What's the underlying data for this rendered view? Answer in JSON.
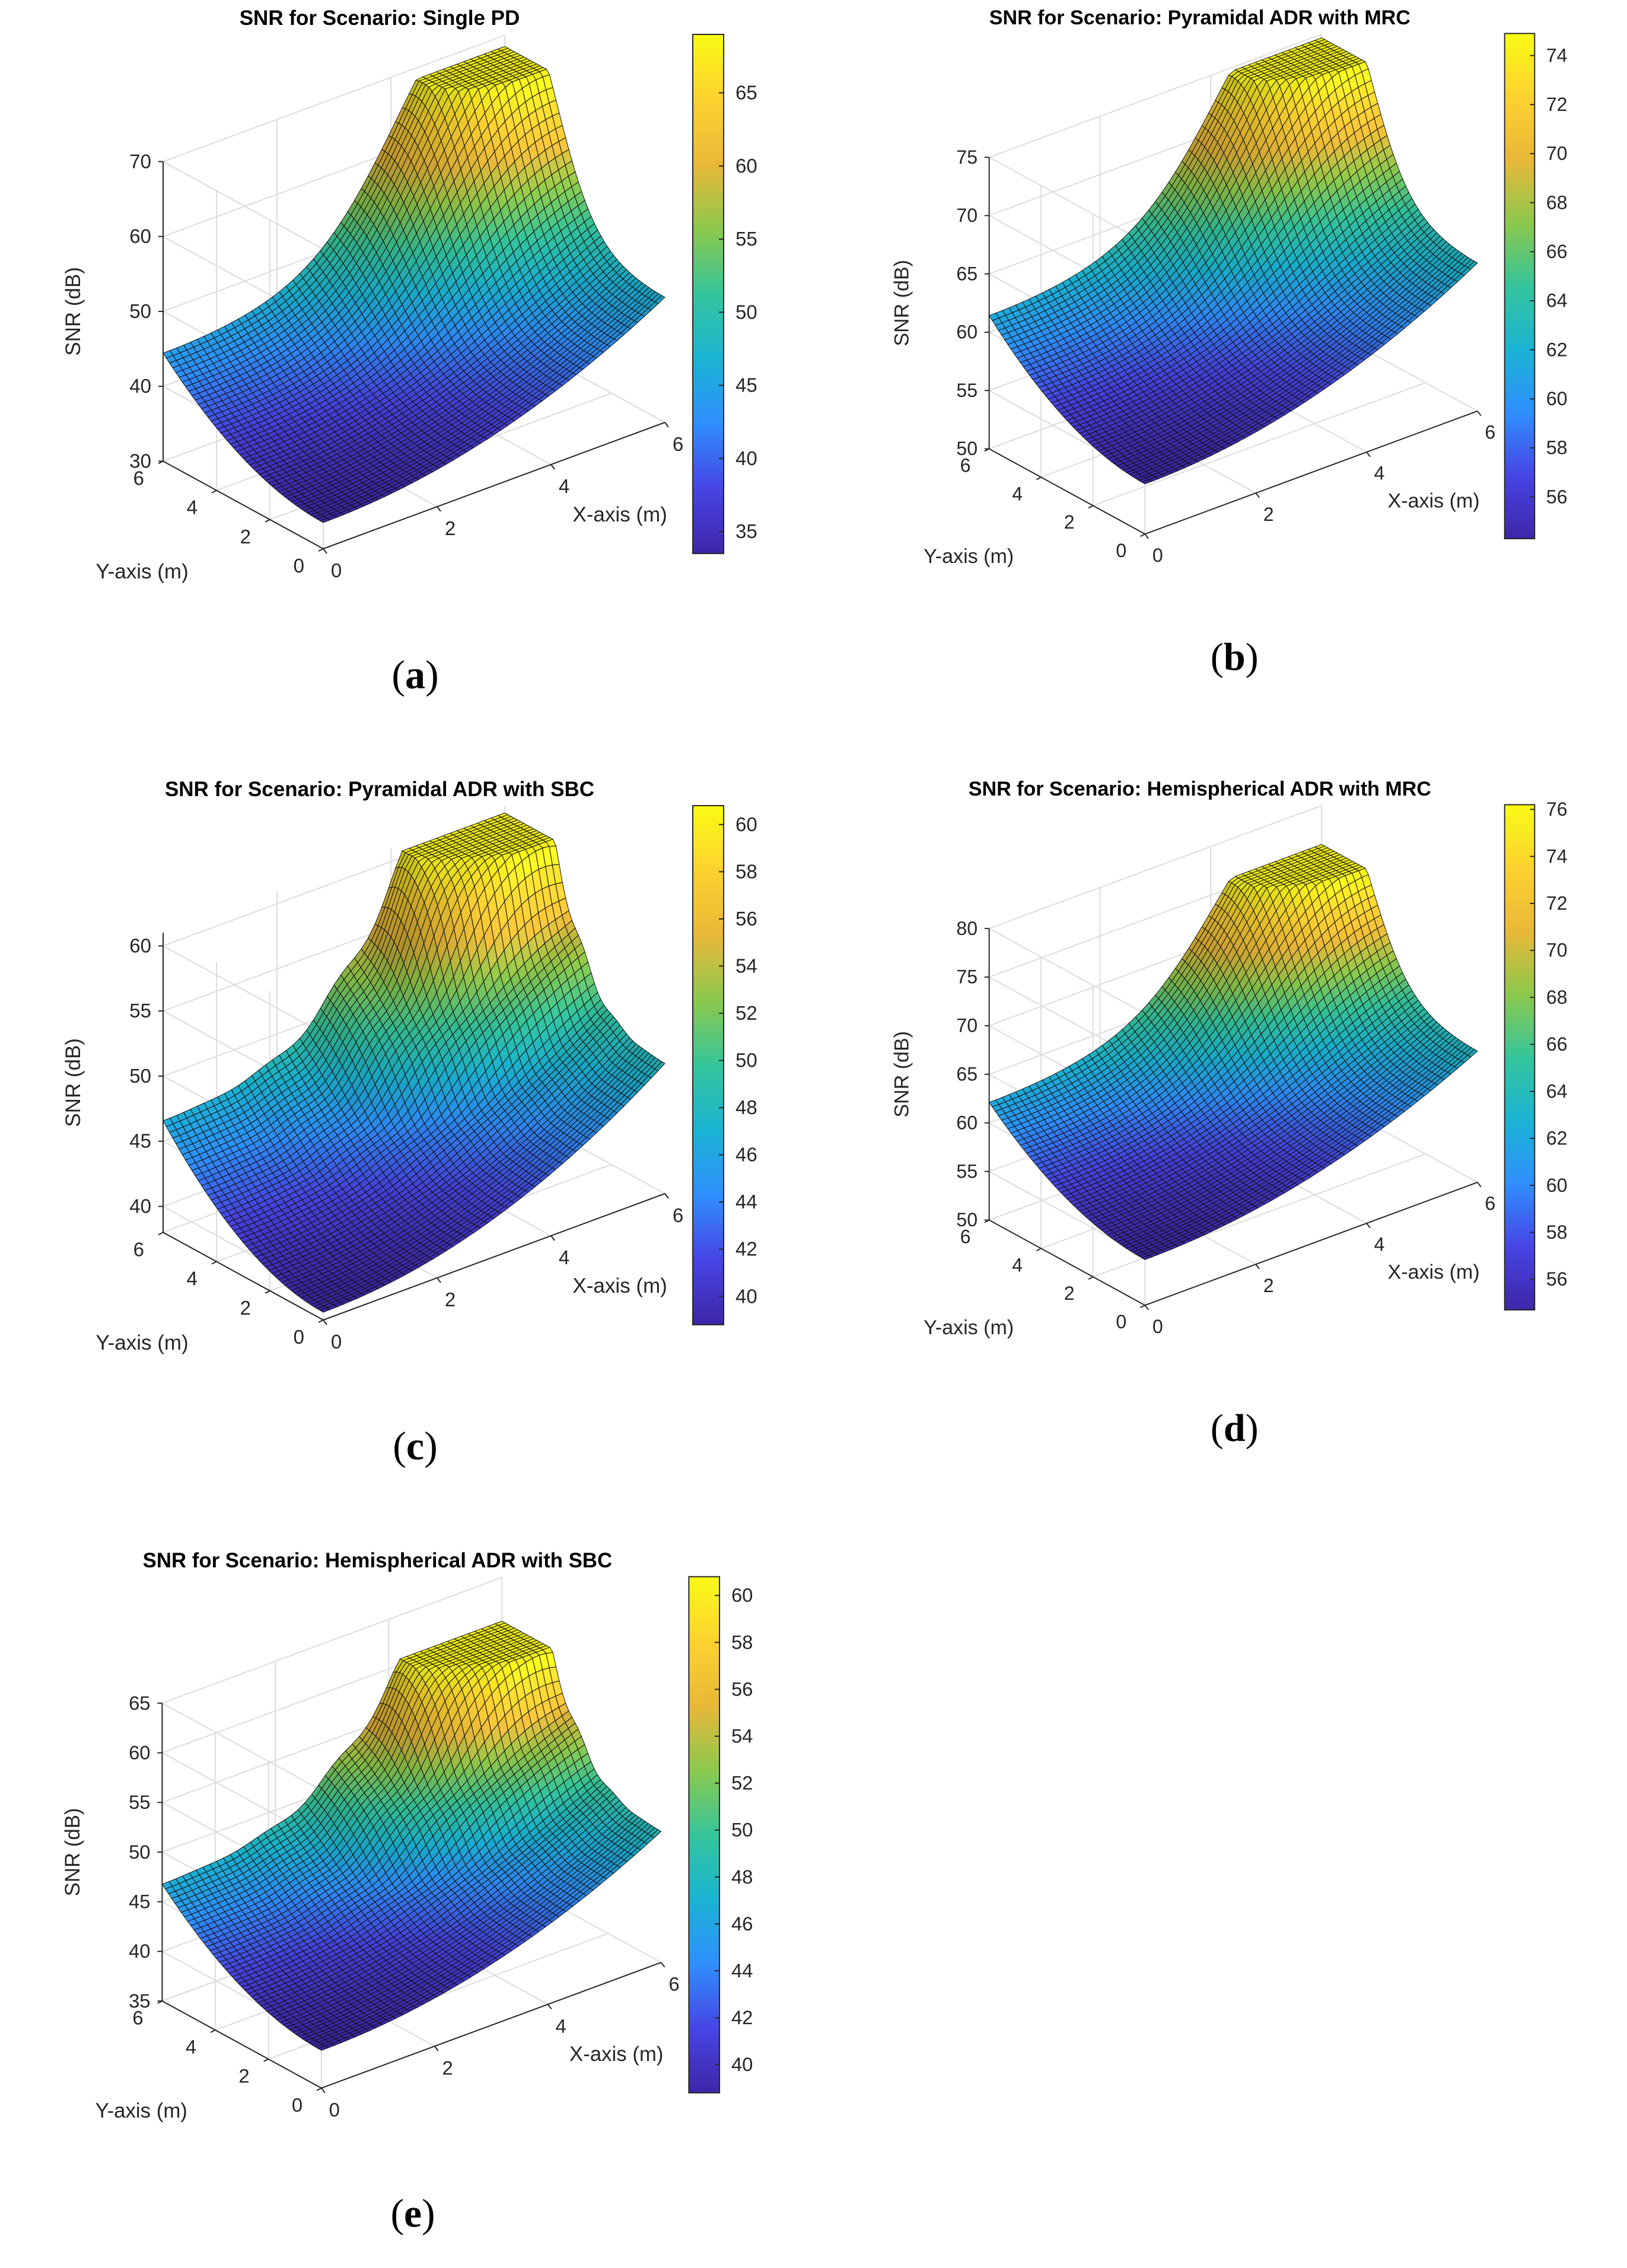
{
  "figure": {
    "colors": {
      "colormap": [
        "#3e26a8",
        "#4745e4",
        "#2f8ffd",
        "#1ab4d3",
        "#35c59b",
        "#8cc84c",
        "#e9b838",
        "#fcd22f",
        "#f9fb15"
      ]
    },
    "panels": [
      {
        "id": "a",
        "caption": "a",
        "chart_data": {
          "type": "surface",
          "title": "SNR for Scenario: Single PD",
          "xlabel": "X-axis (m)",
          "ylabel": "Y-axis (m)",
          "zlabel": "SNR (dB)",
          "xlim": [
            0,
            6
          ],
          "ylim": [
            0,
            6
          ],
          "zlim": [
            30,
            70
          ],
          "xticks": [
            "0",
            "2",
            "4",
            "6"
          ],
          "yticks": [
            "0",
            "2",
            "4",
            "6"
          ],
          "zticks": [
            "30",
            "40",
            "50",
            "60",
            "70"
          ],
          "surface": {
            "grid": 50,
            "z_corner_low": 33.5,
            "z_corner_x_high": 46.7,
            "z_corner_y_high": 45.0,
            "z_peak": 68.5,
            "peak_x": 5.4,
            "peak_y": 5.4,
            "ripples": 0
          },
          "colorbar": {
            "min": 33.5,
            "max": 69,
            "ticks": [
              "35",
              "40",
              "45",
              "50",
              "55",
              "60",
              "65"
            ]
          }
        }
      },
      {
        "id": "b",
        "caption": "b",
        "chart_data": {
          "type": "surface",
          "title": "SNR for Scenario: Pyramidal ADR with MRC",
          "xlabel": "X-axis (m)",
          "ylabel": "Y-axis (m)",
          "zlabel": "SNR (dB)",
          "xlim": [
            0,
            6
          ],
          "ylim": [
            0,
            6
          ],
          "zlim": [
            50,
            75
          ],
          "xticks": [
            "0",
            "2",
            "4",
            "6"
          ],
          "yticks": [
            "0",
            "2",
            "4",
            "6"
          ],
          "zticks": [
            "50",
            "55",
            "60",
            "65",
            "70",
            "75"
          ],
          "surface": {
            "grid": 50,
            "z_corner_low": 54.3,
            "z_corner_x_high": 62.7,
            "z_corner_y_high": 61.8,
            "z_peak": 74.7,
            "peak_x": 5.4,
            "peak_y": 5.4,
            "ripples": 0
          },
          "colorbar": {
            "min": 54.3,
            "max": 74.9,
            "ticks": [
              "56",
              "58",
              "60",
              "62",
              "64",
              "66",
              "68",
              "70",
              "72",
              "74"
            ]
          }
        }
      },
      {
        "id": "c",
        "caption": "c",
        "chart_data": {
          "type": "surface",
          "title": "SNR for Scenario: Pyramidal ADR with SBC",
          "xlabel": "X-axis (m)",
          "ylabel": "Y-axis (m)",
          "zlabel": "SNR (dB)",
          "xlim": [
            0,
            6
          ],
          "ylim": [
            0,
            6
          ],
          "zlim": [
            38,
            61
          ],
          "xticks": [
            "0",
            "2",
            "4",
            "6"
          ],
          "yticks": [
            "0",
            "2",
            "4",
            "6"
          ],
          "zticks": [
            "40",
            "45",
            "50",
            "55",
            "60"
          ],
          "surface": {
            "grid": 50,
            "z_corner_low": 38.6,
            "z_corner_x_high": 48.0,
            "z_corner_y_high": 47.0,
            "z_peak": 60.5,
            "peak_x": 5.3,
            "peak_y": 5.3,
            "ripples": 1
          },
          "colorbar": {
            "min": 38.8,
            "max": 60.8,
            "ticks": [
              "40",
              "42",
              "44",
              "46",
              "48",
              "50",
              "52",
              "54",
              "56",
              "58",
              "60"
            ]
          }
        }
      },
      {
        "id": "d",
        "caption": "d",
        "chart_data": {
          "type": "surface",
          "title": "SNR for Scenario: Hemispherical ADR with MRC",
          "xlabel": "X-axis (m)",
          "ylabel": "Y-axis (m)",
          "zlabel": "SNR (dB)",
          "xlim": [
            0,
            6
          ],
          "ylim": [
            0,
            6
          ],
          "zlim": [
            50,
            80
          ],
          "xticks": [
            "0",
            "2",
            "4",
            "6"
          ],
          "yticks": [
            "0",
            "2",
            "4",
            "6"
          ],
          "zticks": [
            "50",
            "55",
            "60",
            "65",
            "70",
            "75",
            "80"
          ],
          "surface": {
            "grid": 50,
            "z_corner_low": 54.7,
            "z_corner_x_high": 63.5,
            "z_corner_y_high": 62.5,
            "z_peak": 76.0,
            "peak_x": 5.4,
            "peak_y": 5.4,
            "ripples": 0
          },
          "colorbar": {
            "min": 54.7,
            "max": 76.2,
            "ticks": [
              "56",
              "58",
              "60",
              "62",
              "64",
              "66",
              "68",
              "70",
              "72",
              "74",
              "76"
            ]
          }
        }
      },
      {
        "id": "e",
        "caption": "e",
        "chart_data": {
          "type": "surface",
          "title": "SNR for Scenario: Hemispherical ADR with SBC",
          "xlabel": "X-axis (m)",
          "ylabel": "Y-axis (m)",
          "zlabel": "SNR (dB)",
          "xlim": [
            0,
            6
          ],
          "ylim": [
            0,
            6
          ],
          "zlim": [
            35,
            65
          ],
          "xticks": [
            "0",
            "2",
            "4",
            "6"
          ],
          "yticks": [
            "0",
            "2",
            "4",
            "6"
          ],
          "zticks": [
            "35",
            "40",
            "45",
            "50",
            "55",
            "60",
            "65"
          ],
          "surface": {
            "grid": 50,
            "z_corner_low": 38.8,
            "z_corner_x_high": 48.2,
            "z_corner_y_high": 47.2,
            "z_peak": 60.6,
            "peak_x": 5.3,
            "peak_y": 5.3,
            "ripples": 1
          },
          "colorbar": {
            "min": 38.8,
            "max": 60.8,
            "ticks": [
              "40",
              "42",
              "44",
              "46",
              "48",
              "50",
              "52",
              "54",
              "56",
              "58",
              "60"
            ]
          }
        }
      }
    ]
  }
}
